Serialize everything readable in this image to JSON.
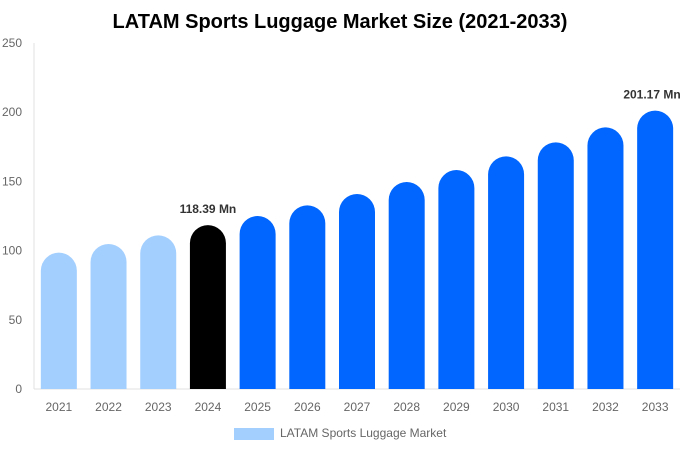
{
  "chart_data": {
    "type": "bar",
    "title": "LATAM Sports Luggage Market Size (2021-2033)",
    "xlabel": "",
    "ylabel": "",
    "ylim": [
      0,
      250
    ],
    "yticks": [
      0,
      50,
      100,
      150,
      200,
      250
    ],
    "grid": false,
    "categories": [
      "2021",
      "2022",
      "2023",
      "2024",
      "2025",
      "2026",
      "2027",
      "2028",
      "2029",
      "2030",
      "2031",
      "2032",
      "2033"
    ],
    "series": [
      {
        "name": "LATAM Sports Luggage Market",
        "values": [
          98.5,
          104.8,
          111.0,
          118.39,
          125.0,
          132.7,
          140.9,
          149.6,
          158.2,
          168.1,
          178.2,
          189.0,
          201.17
        ]
      }
    ],
    "bar_colors": [
      "#a3cfff",
      "#a3cfff",
      "#a3cfff",
      "#000000",
      "#0066ff",
      "#0066ff",
      "#0066ff",
      "#0066ff",
      "#0066ff",
      "#0066ff",
      "#0066ff",
      "#0066ff",
      "#0066ff"
    ],
    "data_labels": [
      {
        "index": 3,
        "text": "118.39 Mn"
      },
      {
        "index": 12,
        "text": "201.17 Mn"
      }
    ],
    "legend": {
      "placement": "bottom",
      "label": "LATAM Sports Luggage Market",
      "color": "#a3cfff"
    }
  }
}
